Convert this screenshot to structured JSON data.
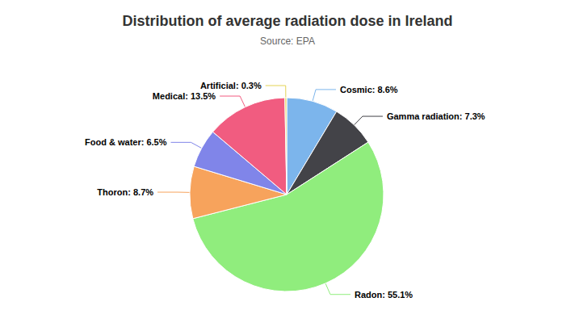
{
  "chart_data": {
    "type": "pie",
    "title": "Distribution of average radiation dose in Ireland",
    "subtitle": "Source: EPA",
    "categories": [
      "Cosmic",
      "Gamma radiation",
      "Radon",
      "Thoron",
      "Food & water",
      "Medical",
      "Artificial"
    ],
    "values": [
      8.6,
      7.3,
      55.1,
      8.7,
      6.5,
      13.5,
      0.3
    ],
    "value_labels": [
      "Cosmic: 8.6%",
      "Gamma radiation: 7.3%",
      "Radon: 55.1%",
      "Thoron: 8.7%",
      "Food & water: 6.5%",
      "Medical: 13.5%",
      "Artificial: 0.3%"
    ],
    "colors": [
      "#7cb5ec",
      "#434348",
      "#90ed7d",
      "#f7a35c",
      "#8085e9",
      "#f15c80",
      "#e4d354"
    ],
    "data_labels": true
  }
}
